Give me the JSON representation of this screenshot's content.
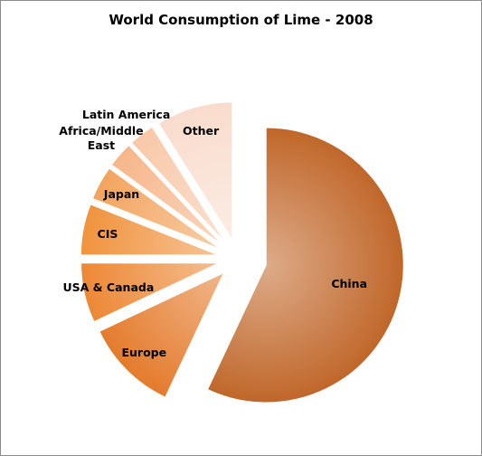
{
  "chart_data": {
    "type": "pie",
    "title": "World Consumption of Lime - 2008",
    "categories": [
      "China",
      "Europe",
      "USA & Canada",
      "CIS",
      "Japan",
      "Africa/Middle East",
      "Latin America",
      "Other"
    ],
    "values": [
      57,
      11,
      7,
      6,
      4,
      3,
      3,
      9
    ],
    "colors": [
      "#c0672a",
      "#e47b2c",
      "#ec8835",
      "#f0933e",
      "#f3a45e",
      "#f6b68a",
      "#f8c8a8",
      "#f9dccd"
    ]
  }
}
